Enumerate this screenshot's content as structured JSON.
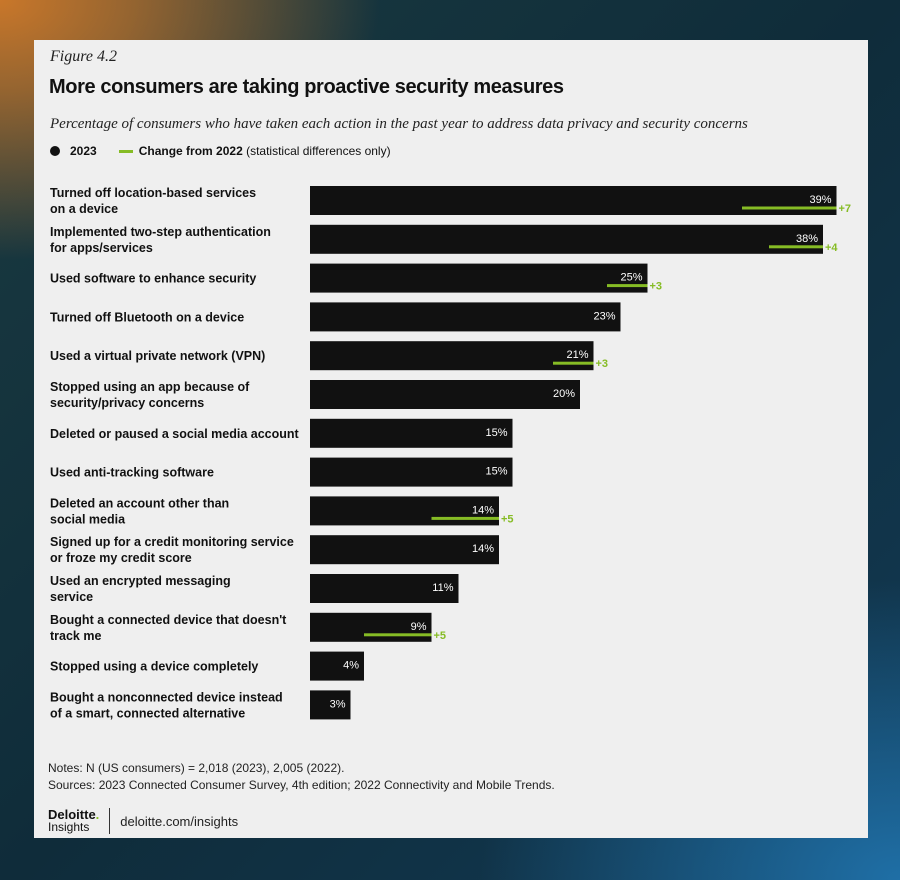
{
  "figure_label": "Figure 4.2",
  "title": "More consumers are taking proactive security measures",
  "subtitle": "Percentage of consumers who have taken each action in the past year to address data privacy and security concerns",
  "legend": {
    "series_2023": "2023",
    "change_bold": "Change from 2022",
    "change_note": " (statistical differences only)"
  },
  "colors": {
    "bar": "#111111",
    "change": "#86bc25",
    "background": "#efefef"
  },
  "chart_data": {
    "type": "bar",
    "orientation": "horizontal",
    "title": "More consumers are taking proactive security measures",
    "categories": [
      [
        "Turned off location-based services",
        "on a device"
      ],
      [
        "Implemented two-step authentication",
        "for apps/services"
      ],
      [
        "Used software to enhance security"
      ],
      [
        "Turned off Bluetooth on a device"
      ],
      [
        "Used a virtual private network (VPN)"
      ],
      [
        "Stopped using an app because of",
        "security/privacy concerns"
      ],
      [
        "Deleted or paused a social media account"
      ],
      [
        "Used anti-tracking software"
      ],
      [
        "Deleted an account other than",
        "social media"
      ],
      [
        "Signed up for a credit monitoring service",
        "or froze my credit score"
      ],
      [
        "Used an encrypted messaging",
        "service"
      ],
      [
        "Bought a connected device that doesn't",
        "track me"
      ],
      [
        "Stopped using a device completely"
      ],
      [
        "Bought a nonconnected device instead",
        "of a smart, connected alternative"
      ]
    ],
    "series": [
      {
        "name": "2023",
        "values": [
          39,
          38,
          25,
          23,
          21,
          20,
          15,
          15,
          14,
          14,
          11,
          9,
          4,
          3
        ]
      },
      {
        "name": "Change from 2022",
        "values": [
          7,
          4,
          3,
          null,
          3,
          null,
          null,
          null,
          5,
          null,
          null,
          5,
          null,
          null
        ]
      }
    ],
    "value_suffix": "%",
    "xlim": [
      0,
      40
    ]
  },
  "notes": {
    "line1": "Notes: N (US consumers) = 2,018 (2023), 2,005 (2022).",
    "line2": "Sources: 2023 Connected Consumer Survey, 4th edition; 2022 Connectivity and Mobile Trends."
  },
  "brand": {
    "name": "Deloitte",
    "dot": ".",
    "sub": "Insights",
    "url": "deloitte.com/insights"
  }
}
